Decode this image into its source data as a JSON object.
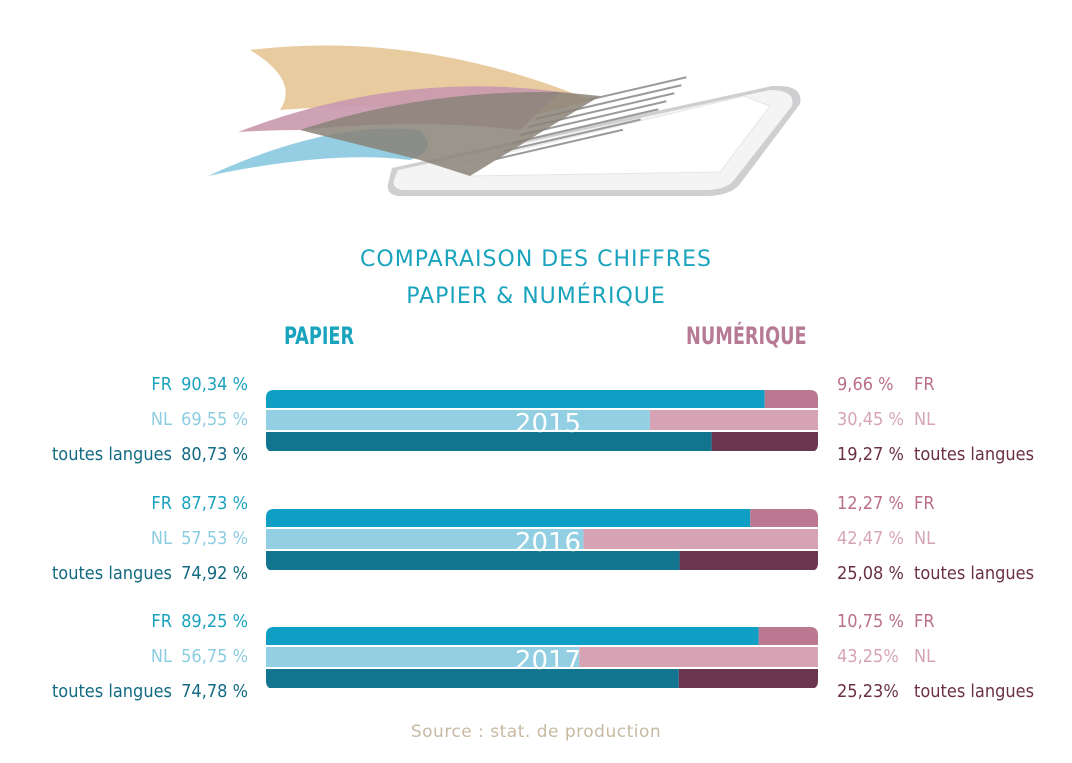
{
  "title": {
    "line1": "COMPARAISON DES CHIFFRES",
    "line2": "PAPIER & NUMÉRIQUE"
  },
  "headers": {
    "left": "PAPIER",
    "right": "NUMÉRIQUE"
  },
  "source": "Source : stat. de production",
  "colors": {
    "paper_fr": "#0f9fc4",
    "paper_nl": "#93cfe2",
    "paper_all": "#127590",
    "digital_fr": "#ba7891",
    "digital_nl": "#d6a3b4",
    "digital_all": "#6a3650"
  },
  "chart_data": {
    "type": "bar",
    "orientation": "horizontal-stacked-100",
    "series_names": [
      "PAPIER",
      "NUMÉRIQUE"
    ],
    "groups": [
      {
        "year": "2015",
        "rows": [
          {
            "key": "FR",
            "label": "FR",
            "paper": 90.34,
            "paper_text": "90,34 %",
            "digital": 9.66,
            "digital_text": "9,66 %"
          },
          {
            "key": "NL",
            "label": "NL",
            "paper": 69.55,
            "paper_text": "69,55 %",
            "digital": 30.45,
            "digital_text": "30,45 %"
          },
          {
            "key": "ALL",
            "label": "toutes langues",
            "paper": 80.73,
            "paper_text": "80,73 %",
            "digital": 19.27,
            "digital_text": "19,27 %"
          }
        ]
      },
      {
        "year": "2016",
        "rows": [
          {
            "key": "FR",
            "label": "FR",
            "paper": 87.73,
            "paper_text": "87,73 %",
            "digital": 12.27,
            "digital_text": "12,27 %"
          },
          {
            "key": "NL",
            "label": "NL",
            "paper": 57.53,
            "paper_text": "57,53 %",
            "digital": 42.47,
            "digital_text": "42,47 %"
          },
          {
            "key": "ALL",
            "label": "toutes langues",
            "paper": 74.92,
            "paper_text": "74,92 %",
            "digital": 25.08,
            "digital_text": "25,08 %"
          }
        ]
      },
      {
        "year": "2017",
        "rows": [
          {
            "key": "FR",
            "label": "FR",
            "paper": 89.25,
            "paper_text": "89,25 %",
            "digital": 10.75,
            "digital_text": "10,75 %"
          },
          {
            "key": "NL",
            "label": "NL",
            "paper": 56.75,
            "paper_text": "56,75 %",
            "digital": 43.25,
            "digital_text": "43,25%"
          },
          {
            "key": "ALL",
            "label": "toutes langues",
            "paper": 74.78,
            "paper_text": "74,78 %",
            "digital": 25.23,
            "digital_text": "25,23%"
          }
        ]
      }
    ]
  }
}
